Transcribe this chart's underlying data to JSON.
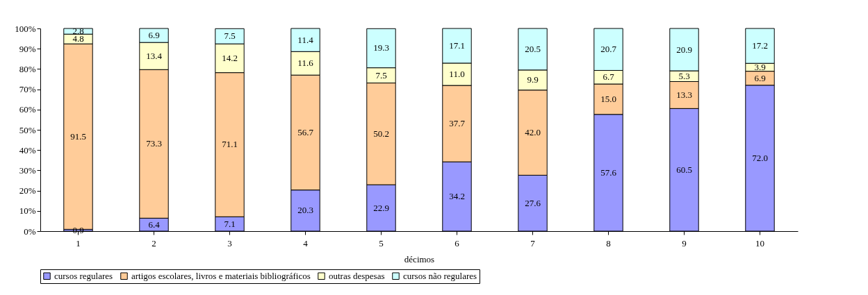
{
  "chart_data": {
    "type": "bar",
    "stacked": true,
    "xlabel": "décimos",
    "categories": [
      "1",
      "2",
      "3",
      "4",
      "5",
      "6",
      "7",
      "8",
      "9",
      "10"
    ],
    "series": [
      {
        "name": "cursos regulares",
        "color": "#9999ff",
        "values": [
          0.9,
          6.4,
          7.1,
          20.3,
          22.9,
          34.2,
          27.6,
          57.6,
          60.5,
          72.0
        ],
        "value_labels": [
          "0.9",
          "6.4",
          "7.1",
          "20.3",
          "22.9",
          "34.2",
          "27.6",
          "57.6",
          "60.5",
          "72.0"
        ]
      },
      {
        "name": "artigos escolares, livros e materiais bibliográficos",
        "color": "#ffcc99",
        "values": [
          91.5,
          73.3,
          71.1,
          56.7,
          50.2,
          37.7,
          42.0,
          15.0,
          13.3,
          6.9
        ],
        "value_labels": [
          "91.5",
          "73.3",
          "71.1",
          "56.7",
          "50.2",
          "37.7",
          "42.0",
          "15.0",
          "13.3",
          "6.9"
        ]
      },
      {
        "name": "outras despesas",
        "color": "#ffffcc",
        "values": [
          4.8,
          13.4,
          14.2,
          11.6,
          7.5,
          11.0,
          9.9,
          6.7,
          5.3,
          3.9
        ],
        "value_labels": [
          "4.8",
          "13.4",
          "14.2",
          "11.6",
          "7.5",
          "11.0",
          "9.9",
          "6.7",
          "5.3",
          "3.9"
        ]
      },
      {
        "name": "cursos não regulares",
        "color": "#ccffff",
        "values": [
          2.8,
          6.9,
          7.5,
          11.4,
          19.3,
          17.1,
          20.5,
          20.7,
          20.9,
          17.2
        ],
        "value_labels": [
          "2.8",
          "6.9",
          "7.5",
          "11.4",
          "19.3",
          "17.1",
          "20.5",
          "20.7",
          "20.9",
          "17.2"
        ]
      }
    ],
    "ylim": [
      0,
      100
    ],
    "yticks": [
      {
        "value": 0,
        "label": "0%"
      },
      {
        "value": 10,
        "label": "10%"
      },
      {
        "value": 20,
        "label": "20%"
      },
      {
        "value": 30,
        "label": "30%"
      },
      {
        "value": 40,
        "label": "40%"
      },
      {
        "value": 50,
        "label": "50%"
      },
      {
        "value": 60,
        "label": "60%"
      },
      {
        "value": 70,
        "label": "70%"
      },
      {
        "value": 80,
        "label": "80%"
      },
      {
        "value": 90,
        "label": "90%"
      },
      {
        "value": 100,
        "label": "100%"
      }
    ],
    "grid": false,
    "legend": "bottom"
  }
}
